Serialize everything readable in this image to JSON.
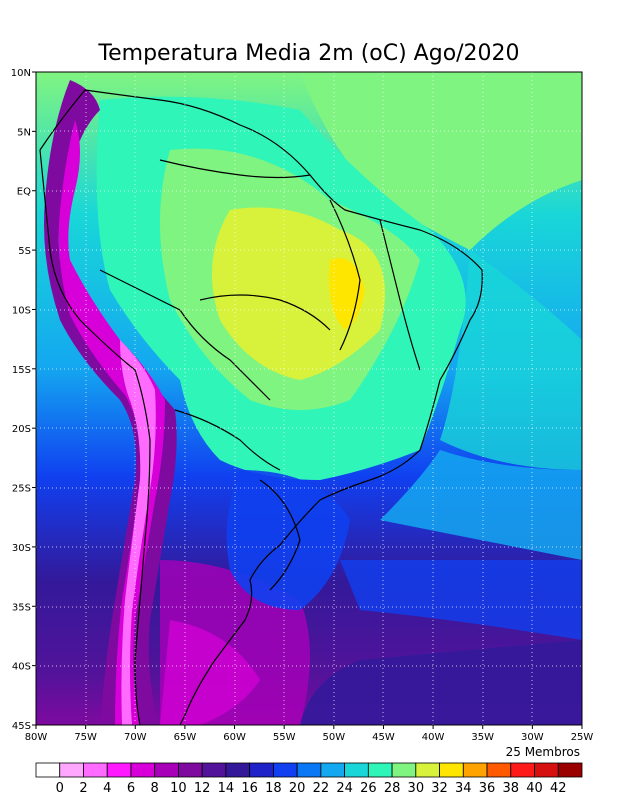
{
  "title": "Temperatura Media 2m (oC) Ago/2020",
  "members_note": "25 Membros",
  "map": {
    "lon_range": [
      -80,
      -25
    ],
    "lat_range": [
      -45,
      10
    ],
    "lon_ticks": [
      "80W",
      "75W",
      "70W",
      "65W",
      "60W",
      "55W",
      "50W",
      "45W",
      "40W",
      "35W",
      "30W",
      "25W"
    ],
    "lat_ticks": [
      "10N",
      "5N",
      "EQ",
      "5S",
      "10S",
      "15S",
      "20S",
      "25S",
      "30S",
      "35S",
      "40S",
      "45S"
    ]
  },
  "colorbar": {
    "labels": [
      "0",
      "2",
      "4",
      "6",
      "8",
      "10",
      "12",
      "14",
      "16",
      "18",
      "20",
      "22",
      "24",
      "26",
      "28",
      "30",
      "32",
      "34",
      "36",
      "38",
      "40",
      "42"
    ],
    "colors": [
      "#ffffff",
      "#ffa6ff",
      "#ff6bff",
      "#ff19ff",
      "#d800d8",
      "#a800b8",
      "#7e0aa0",
      "#52139a",
      "#33199a",
      "#1f22c8",
      "#1040f0",
      "#0a78f5",
      "#14a8f0",
      "#19d6d8",
      "#30f5b8",
      "#80f480",
      "#d8f23c",
      "#ffe600",
      "#ffa300",
      "#ff5a00",
      "#ff1a1a",
      "#d60f0f",
      "#9b0000"
    ]
  }
}
